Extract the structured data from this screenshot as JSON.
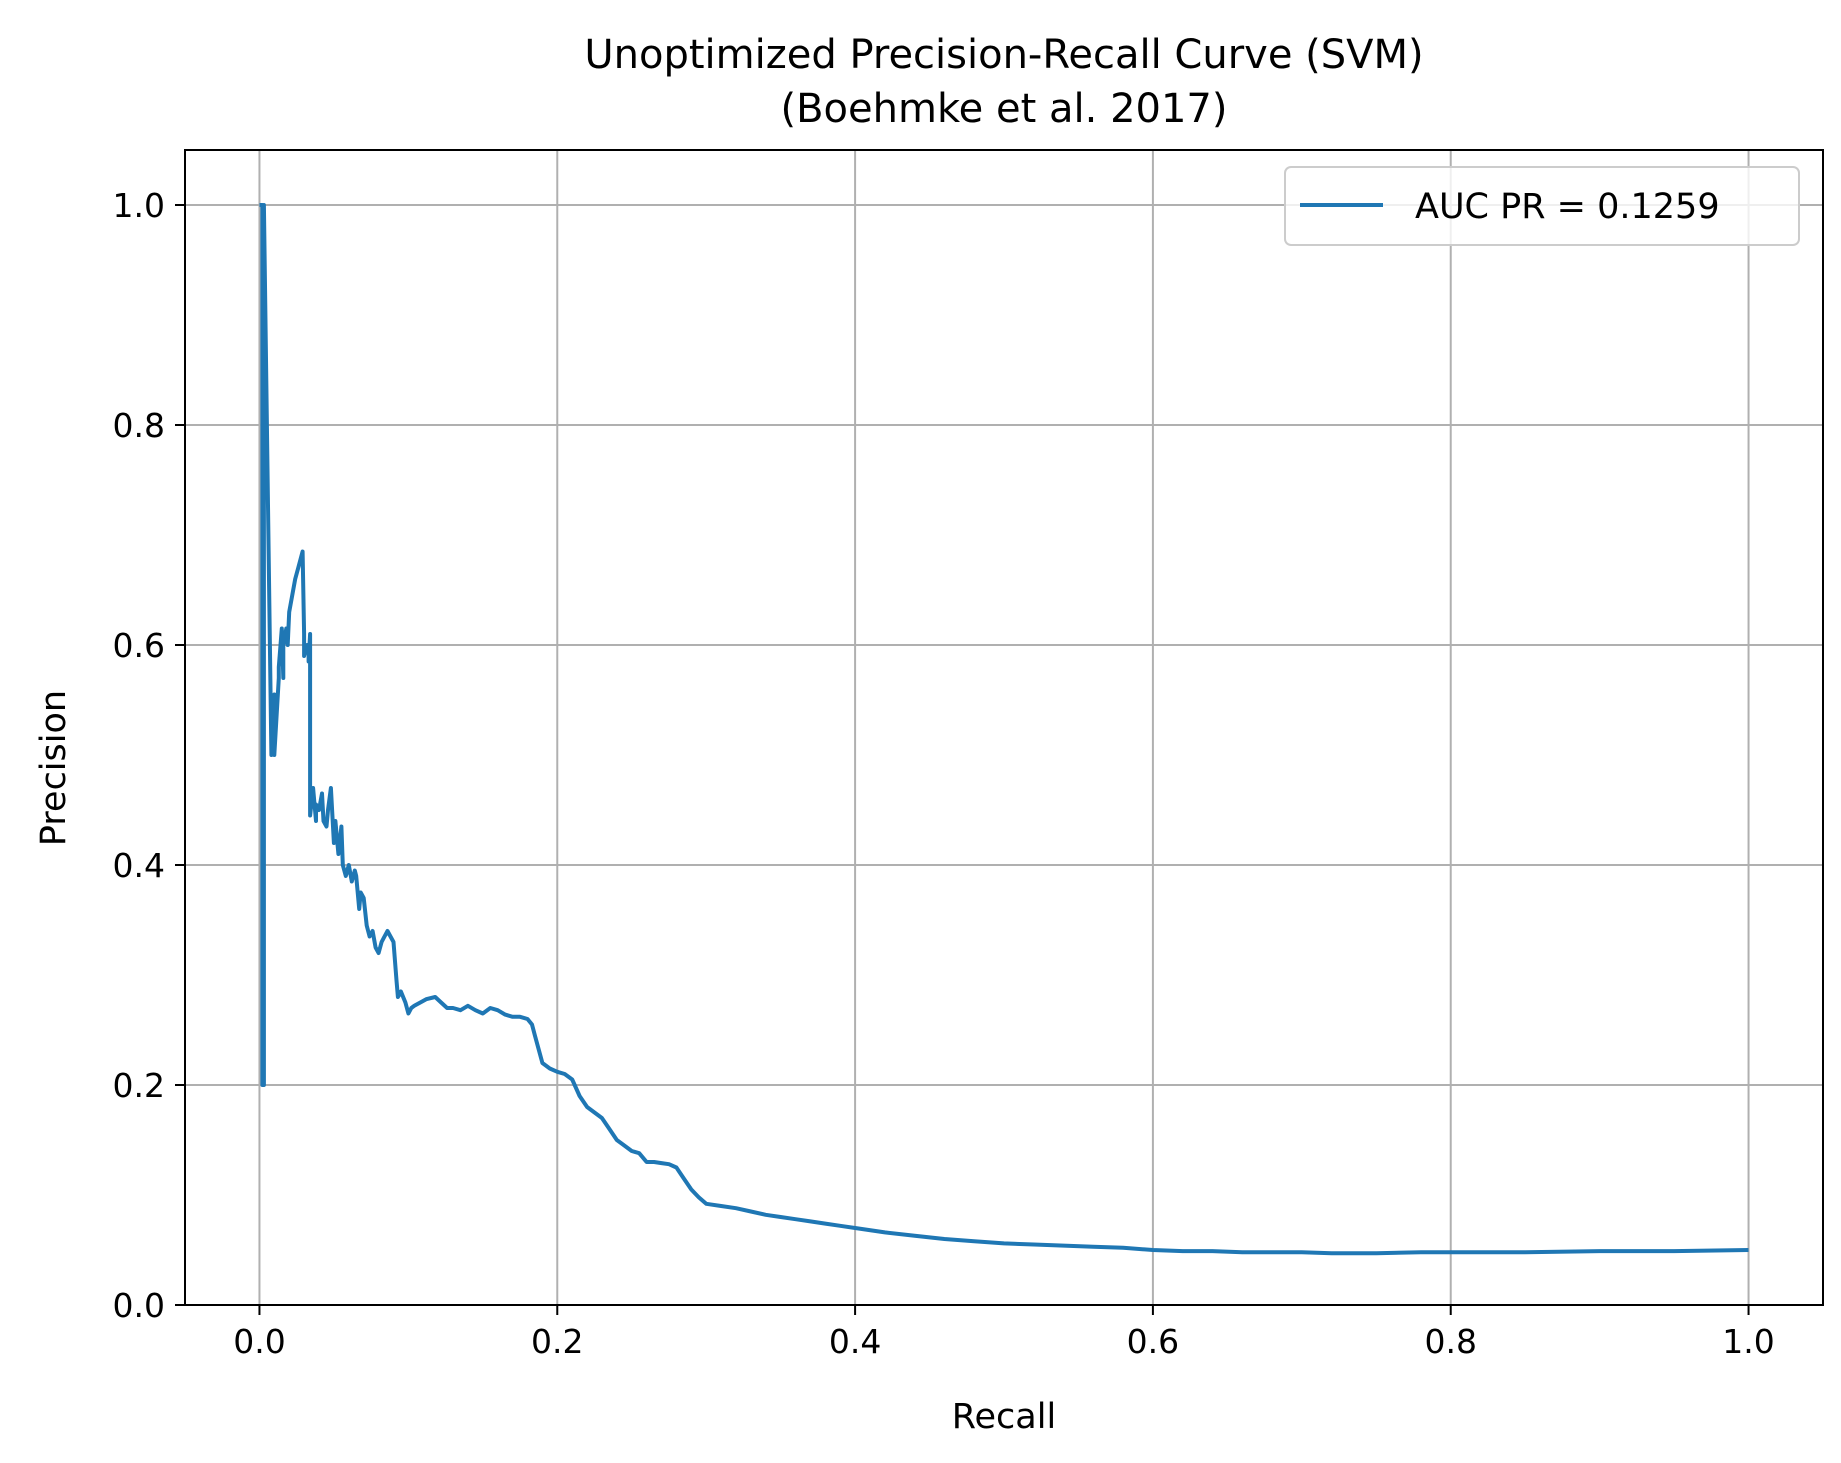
{
  "chart_data": {
    "type": "line",
    "title": [
      "Unoptimized Precision-Recall Curve (SVM)",
      "(Boehmke et al. 2017)"
    ],
    "xlabel": "Recall",
    "ylabel": "Precision",
    "xlim": [
      -0.05,
      1.05
    ],
    "ylim": [
      0.0,
      1.05
    ],
    "xticks": [
      "0.0",
      "0.2",
      "0.4",
      "0.6",
      "0.8",
      "1.0"
    ],
    "yticks": [
      "0.0",
      "0.2",
      "0.4",
      "0.6",
      "0.8",
      "1.0"
    ],
    "grid": true,
    "legend_position": "top-right",
    "colors": {
      "series": "#1f77b4",
      "grid": "#b0b0b0",
      "axes": "#000000"
    },
    "series": [
      {
        "name": "AUC PR = 0.1259",
        "x": [
          0.0,
          0.002,
          0.002,
          0.003,
          0.003,
          0.008,
          0.01,
          0.01,
          0.013,
          0.013,
          0.015,
          0.016,
          0.016,
          0.018,
          0.019,
          0.02,
          0.022,
          0.024,
          0.026,
          0.029,
          0.03,
          0.03,
          0.032,
          0.033,
          0.033,
          0.034,
          0.034,
          0.036,
          0.038,
          0.038,
          0.04,
          0.042,
          0.043,
          0.045,
          0.046,
          0.048,
          0.05,
          0.051,
          0.053,
          0.055,
          0.056,
          0.058,
          0.06,
          0.062,
          0.064,
          0.065,
          0.067,
          0.068,
          0.07,
          0.072,
          0.074,
          0.076,
          0.078,
          0.08,
          0.082,
          0.084,
          0.086,
          0.088,
          0.09,
          0.092,
          0.093,
          0.095,
          0.098,
          0.1,
          0.102,
          0.104,
          0.108,
          0.112,
          0.118,
          0.122,
          0.126,
          0.13,
          0.135,
          0.14,
          0.145,
          0.15,
          0.155,
          0.16,
          0.165,
          0.17,
          0.175,
          0.18,
          0.183,
          0.185,
          0.19,
          0.195,
          0.2,
          0.205,
          0.21,
          0.215,
          0.22,
          0.225,
          0.23,
          0.235,
          0.24,
          0.245,
          0.25,
          0.255,
          0.26,
          0.265,
          0.27,
          0.275,
          0.28,
          0.285,
          0.29,
          0.295,
          0.3,
          0.31,
          0.32,
          0.33,
          0.34,
          0.35,
          0.36,
          0.37,
          0.38,
          0.39,
          0.4,
          0.42,
          0.44,
          0.46,
          0.48,
          0.5,
          0.52,
          0.54,
          0.56,
          0.58,
          0.6,
          0.62,
          0.64,
          0.66,
          0.68,
          0.7,
          0.72,
          0.75,
          0.78,
          0.8,
          0.85,
          0.9,
          0.95,
          1.0
        ],
        "y": [
          1.0,
          1.0,
          0.2,
          0.2,
          1.0,
          0.5,
          0.555,
          0.5,
          0.57,
          0.58,
          0.615,
          0.57,
          0.6,
          0.615,
          0.6,
          0.63,
          0.645,
          0.66,
          0.67,
          0.685,
          0.61,
          0.59,
          0.6,
          0.6,
          0.585,
          0.61,
          0.445,
          0.47,
          0.44,
          0.455,
          0.45,
          0.465,
          0.44,
          0.435,
          0.45,
          0.47,
          0.42,
          0.44,
          0.41,
          0.435,
          0.4,
          0.39,
          0.4,
          0.385,
          0.395,
          0.39,
          0.36,
          0.375,
          0.37,
          0.345,
          0.335,
          0.34,
          0.325,
          0.32,
          0.33,
          0.335,
          0.34,
          0.335,
          0.33,
          0.295,
          0.28,
          0.285,
          0.275,
          0.265,
          0.27,
          0.272,
          0.275,
          0.278,
          0.28,
          0.275,
          0.27,
          0.27,
          0.268,
          0.272,
          0.268,
          0.265,
          0.27,
          0.268,
          0.264,
          0.262,
          0.262,
          0.26,
          0.255,
          0.245,
          0.22,
          0.215,
          0.212,
          0.21,
          0.205,
          0.19,
          0.18,
          0.175,
          0.17,
          0.16,
          0.15,
          0.145,
          0.14,
          0.138,
          0.13,
          0.13,
          0.129,
          0.128,
          0.125,
          0.115,
          0.105,
          0.098,
          0.092,
          0.09,
          0.088,
          0.085,
          0.082,
          0.08,
          0.078,
          0.076,
          0.074,
          0.072,
          0.07,
          0.066,
          0.063,
          0.06,
          0.058,
          0.056,
          0.055,
          0.054,
          0.053,
          0.052,
          0.05,
          0.049,
          0.049,
          0.048,
          0.048,
          0.048,
          0.047,
          0.047,
          0.048,
          0.048,
          0.048,
          0.049,
          0.049,
          0.05
        ]
      }
    ]
  }
}
